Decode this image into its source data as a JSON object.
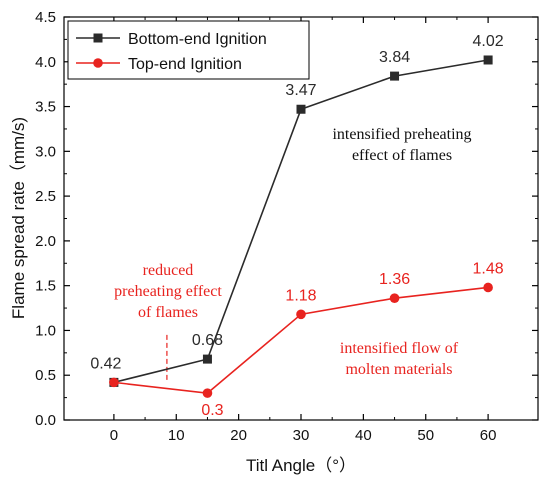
{
  "chart_data": {
    "type": "line",
    "xlabel": "Titl Angle（°）",
    "ylabel": "Flame spread rate（mm/s)",
    "xlim": [
      -8,
      68
    ],
    "ylim": [
      0,
      4.5
    ],
    "xticks": [
      0,
      10,
      20,
      30,
      40,
      50,
      60
    ],
    "yticks": [
      0.0,
      0.5,
      1.0,
      1.5,
      2.0,
      2.5,
      3.0,
      3.5,
      4.0,
      4.5
    ],
    "legend_position": "top-left",
    "series": [
      {
        "name": "Bottom-end Ignition",
        "color": "#2b2b2b",
        "marker": "square",
        "x": [
          0,
          15,
          30,
          45,
          60
        ],
        "y": [
          0.42,
          0.68,
          3.47,
          3.84,
          4.02
        ],
        "labels": [
          "0.42",
          "0.68",
          "3.47",
          "3.84",
          "4.02"
        ]
      },
      {
        "name": "Top-end Ignition",
        "color": "#e8231f",
        "marker": "circle",
        "x": [
          0,
          15,
          30,
          45,
          60
        ],
        "y": [
          0.42,
          0.3,
          1.18,
          1.36,
          1.48
        ],
        "labels": [
          "",
          "0.3",
          "1.18",
          "1.36",
          "1.48"
        ]
      }
    ],
    "annotations": [
      {
        "lines": [
          "intensified preheating",
          "effect of flames"
        ],
        "color": "#111111"
      },
      {
        "lines": [
          "reduced",
          "preheating effect",
          "of flames"
        ],
        "color": "#e8231f"
      },
      {
        "lines": [
          "intensified flow of",
          "molten  materials"
        ],
        "color": "#e8231f"
      }
    ],
    "dashed_marker_x": 8.5
  }
}
